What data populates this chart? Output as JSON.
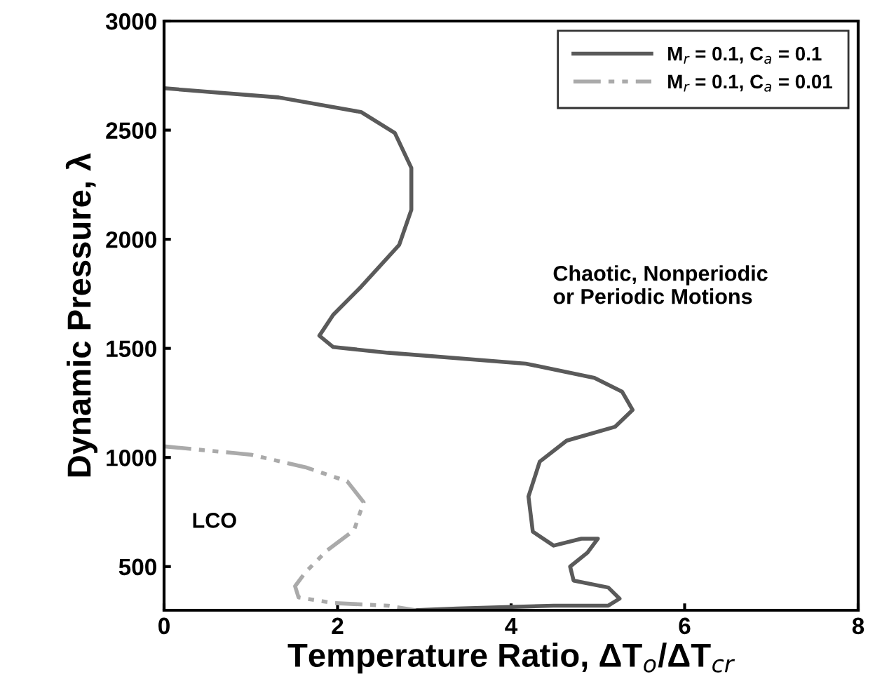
{
  "chart_data": {
    "type": "line",
    "xlabel": "Temperature Ratio, ΔT$_{o}$/ΔT$_{cr}$",
    "ylabel": "Dynamic Pressure, λ",
    "xlim": [
      0,
      8
    ],
    "ylim": [
      300,
      3000
    ],
    "xticks": [
      0,
      2,
      4,
      6,
      8
    ],
    "yticks": [
      500,
      1000,
      1500,
      2000,
      2500,
      3000
    ],
    "grid": false,
    "legend": "top right",
    "marker": "none",
    "series": [
      {
        "name": "M$_{r}$ = 0.1, C$_{a}$ = 0.1",
        "color": "#5a5a5a",
        "line_style": "solid",
        "x": [
          0,
          1.32,
          2.27,
          2.66,
          2.85,
          2.85,
          2.71,
          2.27,
          1.95,
          1.79,
          1.95,
          2.58,
          4.17,
          4.96,
          5.28,
          5.4,
          5.2,
          4.64,
          4.33,
          4.2,
          4.25,
          4.49,
          4.81,
          5.0,
          4.88,
          4.68,
          4.72,
          5.12,
          5.25,
          5.12,
          4.49,
          3.38,
          2.9
        ],
        "values": [
          2692,
          2650,
          2583,
          2487,
          2327,
          2135,
          1974,
          1782,
          1654,
          1558,
          1506,
          1480,
          1430,
          1365,
          1301,
          1218,
          1141,
          1077,
          981,
          821,
          660,
          596,
          628,
          628,
          564,
          500,
          436,
          404,
          353,
          321,
          321,
          308,
          300
        ]
      },
      {
        "name": "M$_{r}$ = 0.1, C$_{a}$ = 0.01",
        "color": "#aaaaaa",
        "line_style": "dashdotdot",
        "x": [
          0,
          1.0,
          1.63,
          2.11,
          2.3,
          2.19,
          1.87,
          1.63,
          1.51,
          1.55,
          1.95,
          2.58,
          2.9
        ],
        "values": [
          1051,
          1013,
          955,
          891,
          795,
          667,
          571,
          474,
          410,
          359,
          333,
          321,
          300
        ]
      }
    ],
    "annotations": [
      "Chaotic, Nonperiodic\nor Periodic Motions",
      "LCO"
    ]
  }
}
